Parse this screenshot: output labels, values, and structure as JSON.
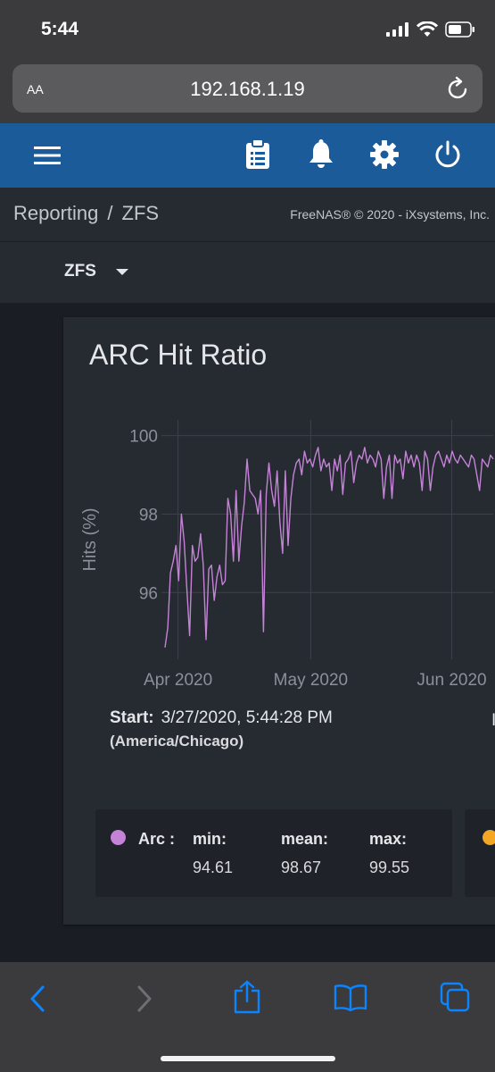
{
  "status_bar": {
    "time": "5:44"
  },
  "browser": {
    "text_size_label": "AA",
    "url": "192.168.1.19"
  },
  "toolbar": {
    "icons": [
      "menu-icon",
      "clipboard-icon",
      "bell-icon",
      "gear-icon",
      "power-icon"
    ]
  },
  "breadcrumb": {
    "section": "Reporting",
    "separator": "/",
    "page": "ZFS",
    "copyright": "FreeNAS® © 2020 - iXsystems, Inc."
  },
  "selector": {
    "value": "ZFS"
  },
  "card": {
    "title": "ARC Hit Ratio",
    "start_label": "Start:",
    "start_value": "3/27/2020, 5:44:28 PM",
    "timezone": "(America/Chicago)",
    "end_fragment": "I"
  },
  "chart_data": {
    "type": "line",
    "title": "ARC Hit Ratio",
    "ylabel": "Hits (%)",
    "xlabel": "",
    "x_ticks": [
      "Apr 2020",
      "May 2020",
      "Jun 2020"
    ],
    "y_ticks": [
      96,
      98,
      100
    ],
    "ylim": [
      94.3,
      100.4
    ],
    "grid": true,
    "series": [
      {
        "name": "Arc",
        "color": "#c583d8",
        "values": [
          94.6,
          95.1,
          96.5,
          96.8,
          97.2,
          96.3,
          98.0,
          97.3,
          96.1,
          94.9,
          97.2,
          96.8,
          96.9,
          97.5,
          96.7,
          94.8,
          96.6,
          96.7,
          95.8,
          96.4,
          96.7,
          96.2,
          96.3,
          98.4,
          98.0,
          96.8,
          98.6,
          96.8,
          97.7,
          98.3,
          99.4,
          98.6,
          98.5,
          98.4,
          98.0,
          98.6,
          95.0,
          98.5,
          99.3,
          98.6,
          98.2,
          99.1,
          97.8,
          97.0,
          99.1,
          97.2,
          98.4,
          99.0,
          99.3,
          99.4,
          99.0,
          99.6,
          99.3,
          99.4,
          99.2,
          99.5,
          99.7,
          99.1,
          99.4,
          99.2,
          99.3,
          98.6,
          99.4,
          99.1,
          99.5,
          98.5,
          99.3,
          99.4,
          99.6,
          98.8,
          99.3,
          99.5,
          99.4,
          99.7,
          99.3,
          99.5,
          99.4,
          99.2,
          99.6,
          99.4,
          98.4,
          99.2,
          99.5,
          98.4,
          99.5,
          99.3,
          99.4,
          98.9,
          99.6,
          99.3,
          99.5,
          99.2,
          99.5,
          99.3,
          98.6,
          99.6,
          99.4,
          98.6,
          99.2,
          99.5,
          99.6,
          99.4,
          99.2,
          99.5,
          99.3,
          99.6,
          99.4,
          99.3,
          99.5,
          99.4,
          99.3,
          99.2,
          99.5,
          99.4,
          99.0,
          98.6,
          99.4,
          99.3,
          99.2,
          99.5,
          99.4
        ]
      }
    ],
    "legend": [
      {
        "name": "Arc :",
        "min_label": "min:",
        "min": "94.61",
        "mean_label": "mean:",
        "mean": "98.67",
        "max_label": "max:",
        "max": "99.55"
      }
    ]
  }
}
